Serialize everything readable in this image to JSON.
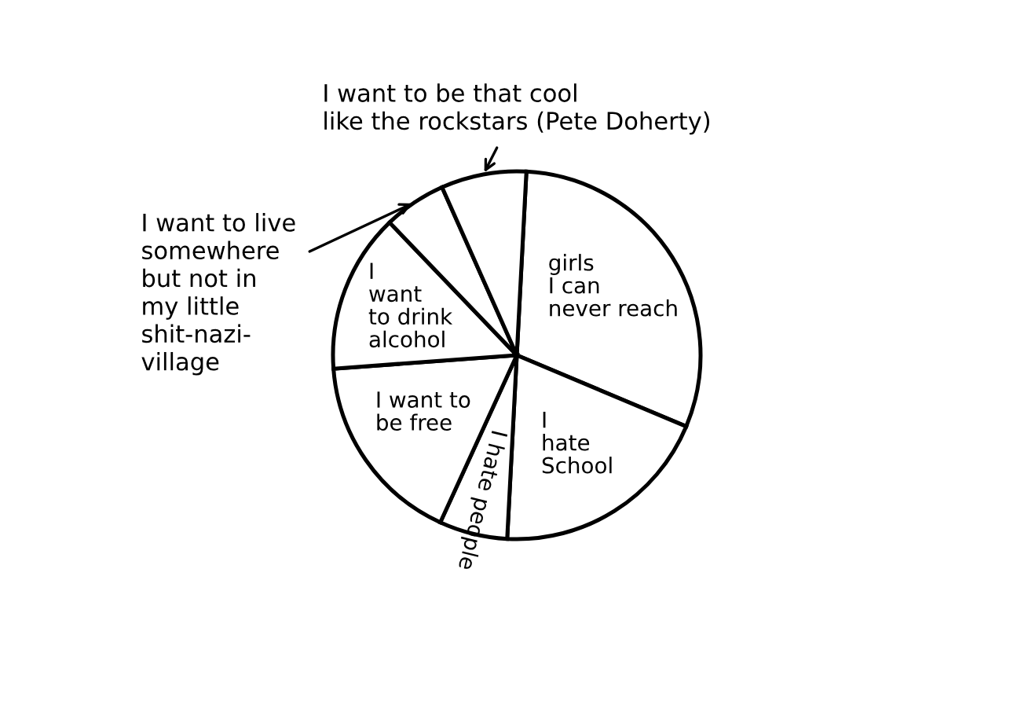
{
  "chart_data": {
    "type": "pie",
    "categories": [
      "girls\nI can\nnever reach",
      "I\nhate\nSchool",
      "I hate people",
      "I want to\nbe free",
      "I\nwant\nto drink\nalcohol",
      "I want to live\nsomewhere\nbut not in\nmy little\nshit-nazi-\nvillage",
      "I want to be that cool\nlike the rockstars (Pete Doherty)"
    ],
    "values": [
      30.5,
      19.5,
      6,
      17,
      14,
      5.5,
      7.5
    ],
    "colors": [
      "#ffffff",
      "#ffffff",
      "#ffffff",
      "#ffffff",
      "#ffffff",
      "#ffffff",
      "#ffffff"
    ]
  }
}
